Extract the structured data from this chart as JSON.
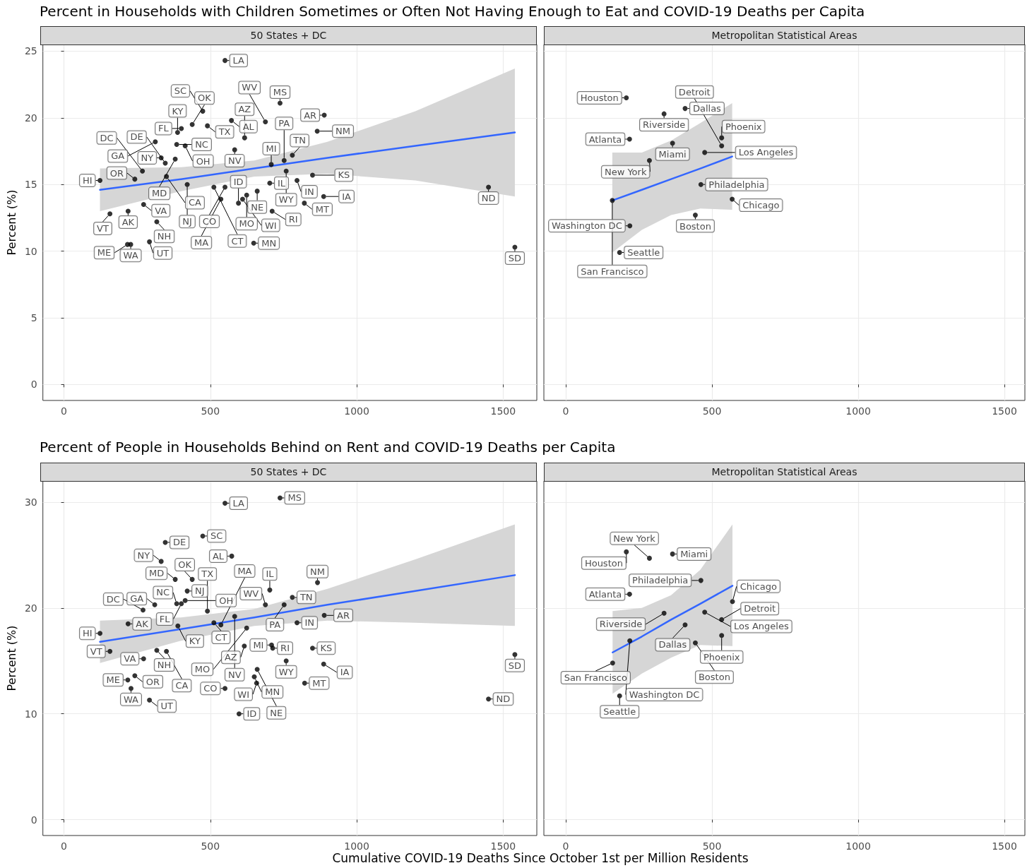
{
  "chart_data": [
    {
      "type": "scatter",
      "title": "Percent in Households with Children Sometimes or Often Not Having Enough to Eat and COVID-19 Deaths per Capita",
      "subtitle": "50 States + DC",
      "ylabel": "Percent (%)",
      "xlim": [
        -72,
        1615
      ],
      "ylim": [
        -1.2,
        25.5
      ],
      "xticks": [
        0,
        500,
        1000,
        1500
      ],
      "yticks": [
        0,
        5,
        10,
        15,
        20,
        25
      ],
      "grid": true,
      "series": [
        {
          "marker": "circle",
          "color": "#000000",
          "x": [
            550,
            738,
            474,
            572,
            688,
            438,
            490,
            401,
            388,
            312,
            385,
            414,
            332,
            380,
            346,
            350,
            268,
            242,
            123,
            157,
            272,
            219,
            217,
            228,
            292,
            317,
            583,
            617,
            708,
            752,
            780,
            759,
            512,
            550,
            421,
            536,
            703,
            796,
            849,
            660,
            610,
            596,
            624,
            711,
            648,
            821,
            887,
            865,
            889,
            1450,
            1540
          ],
          "values": [
            24.3,
            21.1,
            20.5,
            19.8,
            19.7,
            19.5,
            19.4,
            19.2,
            18.9,
            18.2,
            18.0,
            17.9,
            17.0,
            16.9,
            16.6,
            15.6,
            16.0,
            15.4,
            15.3,
            12.8,
            13.5,
            13.0,
            10.5,
            10.5,
            10.7,
            12.2,
            17.6,
            18.5,
            16.5,
            16.8,
            17.2,
            16.0,
            14.8,
            14.8,
            15.0,
            13.9,
            15.1,
            15.3,
            15.7,
            14.5,
            13.9,
            13.6,
            14.2,
            13.0,
            10.6,
            13.6,
            14.1,
            19.0,
            20.2,
            14.8,
            10.3
          ],
          "value_labels": [
            "LA",
            "MS",
            "SC",
            "AL",
            "WV",
            "OK",
            "TX",
            "FL",
            "KY",
            "GA",
            "NC",
            "OH",
            "NY",
            "MD",
            "DE",
            "CA",
            "DC",
            "OR",
            "HI",
            "VT",
            "VA",
            "AK",
            "ME",
            "WA",
            "UT",
            "NH",
            "NV",
            "AZ",
            "MI",
            "PA",
            "TN",
            "WY",
            "CT",
            "CO",
            "NJ",
            "MA",
            "IL",
            "IN",
            "KS",
            "NE",
            "WI",
            "ID",
            "MO",
            "RI",
            "MN",
            "MT",
            "IA",
            "NM",
            "AR",
            "ND",
            "SD"
          ]
        },
        {
          "type": "line",
          "marker": "none",
          "color": "#3366ff",
          "x": [
            123,
            400,
            650,
            900,
            1200,
            1540
          ],
          "values": [
            14.6,
            15.4,
            16.2,
            17.0,
            17.9,
            18.9
          ],
          "lower": [
            13.0,
            14.5,
            15.6,
            15.8,
            15.3,
            14.1
          ],
          "upper": [
            16.2,
            16.3,
            16.8,
            18.2,
            20.5,
            23.7
          ]
        }
      ]
    },
    {
      "type": "scatter",
      "subtitle": "Metropolitan Statistical Areas",
      "xlim": [
        -75,
        1570
      ],
      "ylim": [
        -1.2,
        25.5
      ],
      "xticks": [
        0,
        500,
        1000,
        1500
      ],
      "yticks": [
        0,
        5,
        10,
        15,
        20,
        25
      ],
      "grid": true,
      "tick_labels": "x",
      "series": [
        {
          "marker": "circle",
          "color": "#000000",
          "x": [
            207,
            408,
            336,
            218,
            365,
            533,
            533,
            475,
            286,
            462,
            159,
            569,
            443,
            219,
            184
          ],
          "values": [
            21.5,
            20.7,
            20.3,
            18.4,
            18.1,
            18.5,
            17.9,
            17.4,
            16.8,
            15.0,
            13.8,
            13.9,
            12.7,
            11.9,
            9.9
          ],
          "value_labels": [
            "Houston",
            "Dallas",
            "Riverside",
            "Atlanta",
            "Miami",
            "Phoenix",
            "Detroit",
            "Los Angeles",
            "New York",
            "Philadelphia",
            "San Francisco",
            "Chicago",
            "Boston",
            "Washington DC",
            "Seattle"
          ]
        },
        {
          "type": "line",
          "marker": "none",
          "color": "#3366ff",
          "x": [
            159,
            260,
            360,
            460,
            569
          ],
          "values": [
            13.8,
            14.6,
            15.4,
            16.2,
            17.1
          ],
          "lower": [
            9.9,
            11.6,
            12.7,
            13.2,
            13.1
          ],
          "upper": [
            17.4,
            17.4,
            18.3,
            19.6,
            21.1
          ]
        }
      ]
    },
    {
      "type": "scatter",
      "title": "Percent of People in Households Behind on Rent and COVID-19 Deaths per Capita",
      "subtitle": "50 States + DC",
      "ylabel": "Percent (%)",
      "xlabel": "Cumulative COVID-19 Deaths Since October 1st per Million Residents",
      "xlim": [
        -72,
        1615
      ],
      "ylim": [
        -1.5,
        32
      ],
      "xticks": [
        0,
        500,
        1000,
        1500
      ],
      "yticks": [
        0,
        10,
        20,
        30
      ],
      "grid": true,
      "series": [
        {
          "marker": "circle",
          "color": "#000000",
          "x": [
            550,
            738,
            474,
            346,
            573,
            332,
            438,
            380,
            421,
            414,
            385,
            401,
            490,
            310,
            703,
            688,
            866,
            780,
            752,
            270,
            219,
            123,
            157,
            389,
            317,
            350,
            272,
            512,
            536,
            583,
            624,
            616,
            709,
            713,
            759,
            660,
            650,
            658,
            822,
            550,
            598,
            218,
            242,
            229,
            292,
            849,
            887,
            796,
            889,
            1450,
            1540
          ],
          "values": [
            29.9,
            30.4,
            26.8,
            26.2,
            24.9,
            24.4,
            22.7,
            22.7,
            21.6,
            20.7,
            20.4,
            20.4,
            19.7,
            20.3,
            21.7,
            20.3,
            22.4,
            21.0,
            20.3,
            19.8,
            18.5,
            17.6,
            15.9,
            18.3,
            16.0,
            15.9,
            15.2,
            18.6,
            18.4,
            19.2,
            18.1,
            16.4,
            16.5,
            16.2,
            15.0,
            14.2,
            13.5,
            12.9,
            12.9,
            12.4,
            10.0,
            13.2,
            13.6,
            12.4,
            11.3,
            16.2,
            14.7,
            18.6,
            19.3,
            11.4,
            15.6
          ],
          "value_labels": [
            "LA",
            "MS",
            "SC",
            "DE",
            "AL",
            "NY",
            "OK",
            "MD",
            "NJ",
            "OH",
            "NC",
            "FL",
            "TX",
            "GA",
            "IL",
            "WV",
            "NM",
            "TN",
            "PA",
            "DC",
            "AK",
            "HI",
            "VT",
            "KY",
            "NH",
            "CA",
            "VA",
            "CT",
            "MA",
            "NV",
            "MO",
            "AZ",
            "MI",
            "RI",
            "WY",
            "NE",
            "MN",
            "WI",
            "MT",
            "CO",
            "ID",
            "ME",
            "OR",
            "WA",
            "UT",
            "KS",
            "IA",
            "IN",
            "AR",
            "ND",
            "SD"
          ]
        },
        {
          "type": "line",
          "marker": "none",
          "color": "#3366ff",
          "x": [
            123,
            400,
            650,
            900,
            1200,
            1540
          ],
          "values": [
            16.8,
            18.0,
            19.1,
            20.3,
            21.6,
            23.1
          ],
          "lower": [
            14.8,
            16.9,
            18.3,
            18.8,
            18.6,
            18.3
          ],
          "upper": [
            18.8,
            19.1,
            19.9,
            21.8,
            24.6,
            27.9
          ]
        }
      ]
    },
    {
      "type": "scatter",
      "subtitle": "Metropolitan Statistical Areas",
      "xlim": [
        -75,
        1570
      ],
      "ylim": [
        -1.5,
        32
      ],
      "xticks": [
        0,
        500,
        1000,
        1500
      ],
      "yticks": [
        0,
        10,
        20,
        30
      ],
      "grid": true,
      "tick_labels": "x",
      "series": [
        {
          "marker": "circle",
          "color": "#000000",
          "x": [
            207,
            286,
            365,
            462,
            218,
            570,
            475,
            336,
            533,
            408,
            533,
            443,
            219,
            160,
            184
          ],
          "values": [
            25.3,
            24.7,
            25.1,
            22.6,
            21.3,
            20.6,
            19.6,
            19.5,
            18.9,
            18.4,
            17.4,
            16.7,
            16.9,
            14.8,
            11.7
          ],
          "value_labels": [
            "Houston",
            "New York",
            "Miami",
            "Philadelphia",
            "Atlanta",
            "Chicago",
            "Los Angeles",
            "Riverside",
            "Detroit",
            "Dallas",
            "Phoenix",
            "Boston",
            "Washington DC",
            "San Francisco",
            "Seattle"
          ]
        },
        {
          "type": "line",
          "marker": "none",
          "color": "#3366ff",
          "x": [
            160,
            260,
            360,
            460,
            570
          ],
          "values": [
            15.8,
            17.3,
            18.9,
            20.4,
            22.1
          ],
          "lower": [
            11.9,
            13.8,
            15.3,
            16.5,
            16.4
          ],
          "upper": [
            19.7,
            20.0,
            21.2,
            23.6,
            27.9
          ]
        }
      ]
    }
  ]
}
